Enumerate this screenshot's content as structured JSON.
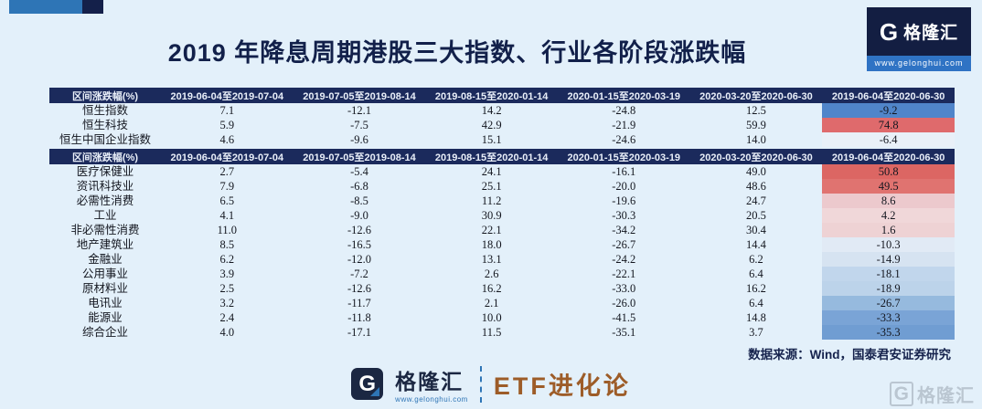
{
  "page": {
    "title": "2019 年降息周期港股三大指数、行业各阶段涨跌幅",
    "source_note": "数据来源：Wind，国泰君安证券研究"
  },
  "brand": {
    "g": "G",
    "name": "格隆汇",
    "url": "www.gelonghui.com",
    "series": "ETF进化论",
    "watermark_g": "G",
    "watermark_text": "格隆汇"
  },
  "theme": {
    "background": "#e3f0fa",
    "header_bg": "#1b2a5c",
    "accent_blue": "#2e75b6",
    "brand_navy": "#131e42",
    "series_brown": "#9d5c28",
    "heat_positive": "#dc6663",
    "heat_negative": "#709dd2"
  },
  "chart_data": [
    {
      "type": "table",
      "name": "indices",
      "columns": [
        "区间涨跌幅(%)",
        "2019-06-04至2019-07-04",
        "2019-07-05至2019-08-14",
        "2019-08-15至2020-01-14",
        "2020-01-15至2020-03-19",
        "2020-03-20至2020-06-30",
        "2019-06-04至2020-06-30"
      ],
      "rows": [
        {
          "label": "恒生指数",
          "values": [
            "7.1",
            "-12.1",
            "14.2",
            "-24.8",
            "12.5",
            "-9.2"
          ],
          "final_bg": "#5085ca"
        },
        {
          "label": "恒生科技",
          "values": [
            "5.9",
            "-7.5",
            "42.9",
            "-21.9",
            "59.9",
            "74.8"
          ],
          "final_bg": "#df6a6c"
        },
        {
          "label": "恒生中国企业指数",
          "values": [
            "4.6",
            "-9.6",
            "15.1",
            "-24.6",
            "14.0",
            "-6.4"
          ],
          "final_bg": "#e9f0f8"
        }
      ]
    },
    {
      "type": "table",
      "name": "sectors",
      "columns": [
        "区间涨跌幅(%)",
        "2019-06-04至2019-07-04",
        "2019-07-05至2019-08-14",
        "2019-08-15至2020-01-14",
        "2020-01-15至2020-03-19",
        "2020-03-20至2020-06-30",
        "2019-06-04至2020-06-30"
      ],
      "rows": [
        {
          "label": "医疗保健业",
          "values": [
            "2.7",
            "-5.4",
            "24.1",
            "-16.1",
            "49.0",
            "50.8"
          ],
          "final_bg": "#dc6663"
        },
        {
          "label": "资讯科技业",
          "values": [
            "7.9",
            "-6.8",
            "25.1",
            "-20.0",
            "48.6",
            "49.5"
          ],
          "final_bg": "#e07370"
        },
        {
          "label": "必需性消费",
          "values": [
            "6.5",
            "-8.5",
            "11.2",
            "-19.6",
            "24.7",
            "8.6"
          ],
          "final_bg": "#ecc9cd"
        },
        {
          "label": "工业",
          "values": [
            "4.1",
            "-9.0",
            "30.9",
            "-30.3",
            "20.5",
            "4.2"
          ],
          "final_bg": "#f0d7d9"
        },
        {
          "label": "非必需性消费",
          "values": [
            "11.0",
            "-12.6",
            "22.1",
            "-34.2",
            "30.4",
            "1.6"
          ],
          "final_bg": "#eed2d4"
        },
        {
          "label": "地产建筑业",
          "values": [
            "8.5",
            "-16.5",
            "18.0",
            "-26.7",
            "14.4",
            "-10.3"
          ],
          "final_bg": "#e1eaf5"
        },
        {
          "label": "金融业",
          "values": [
            "6.2",
            "-12.0",
            "13.1",
            "-24.2",
            "6.2",
            "-14.9"
          ],
          "final_bg": "#d6e3f1"
        },
        {
          "label": "公用事业",
          "values": [
            "3.9",
            "-7.2",
            "2.6",
            "-22.1",
            "6.4",
            "-18.1"
          ],
          "final_bg": "#c1d6ec"
        },
        {
          "label": "原材料业",
          "values": [
            "2.5",
            "-12.6",
            "16.2",
            "-33.0",
            "16.2",
            "-18.9"
          ],
          "final_bg": "#bcd3ea"
        },
        {
          "label": "电讯业",
          "values": [
            "3.2",
            "-11.7",
            "2.1",
            "-26.0",
            "6.4",
            "-26.7"
          ],
          "final_bg": "#96bade"
        },
        {
          "label": "能源业",
          "values": [
            "2.4",
            "-11.8",
            "10.0",
            "-41.5",
            "14.8",
            "-33.3"
          ],
          "final_bg": "#7aa4d6"
        },
        {
          "label": "综合企业",
          "values": [
            "4.0",
            "-17.1",
            "11.5",
            "-35.1",
            "3.7",
            "-35.3"
          ],
          "final_bg": "#709dd2"
        }
      ]
    }
  ]
}
